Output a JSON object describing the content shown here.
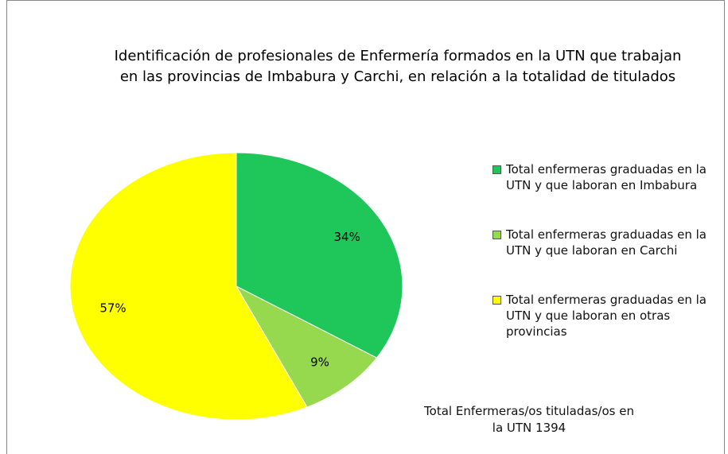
{
  "chart_data": {
    "type": "pie",
    "title": "Identificación de profesionales de Enfermería formados en la UTN que trabajan en las provincias de Imbabura y Carchi, en relación a la totalidad de titulados",
    "categories": [
      "Total enfermeras graduadas en la UTN y que laboran en Imbabura",
      "Total enfermeras graduadas en la UTN y que laboran en Carchi",
      "Total enfermeras graduadas en la UTN y que laboran en otras provincias"
    ],
    "values": [
      34,
      9,
      57
    ],
    "value_labels": [
      "34%",
      "9%",
      "57%"
    ],
    "colors": [
      "#1fc65a",
      "#96d84e",
      "#ffff00"
    ],
    "annotation": "Total Enfermeras/os tituladas/os en la UTN 1394"
  }
}
